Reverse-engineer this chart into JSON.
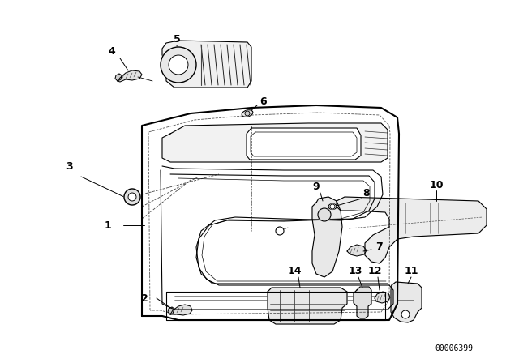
{
  "background_color": "#ffffff",
  "diagram_id": "00006399",
  "fig_width": 6.4,
  "fig_height": 4.48,
  "dpi": 100,
  "line_color": "#000000",
  "label_fontsize": 9,
  "diagram_id_fontsize": 7
}
